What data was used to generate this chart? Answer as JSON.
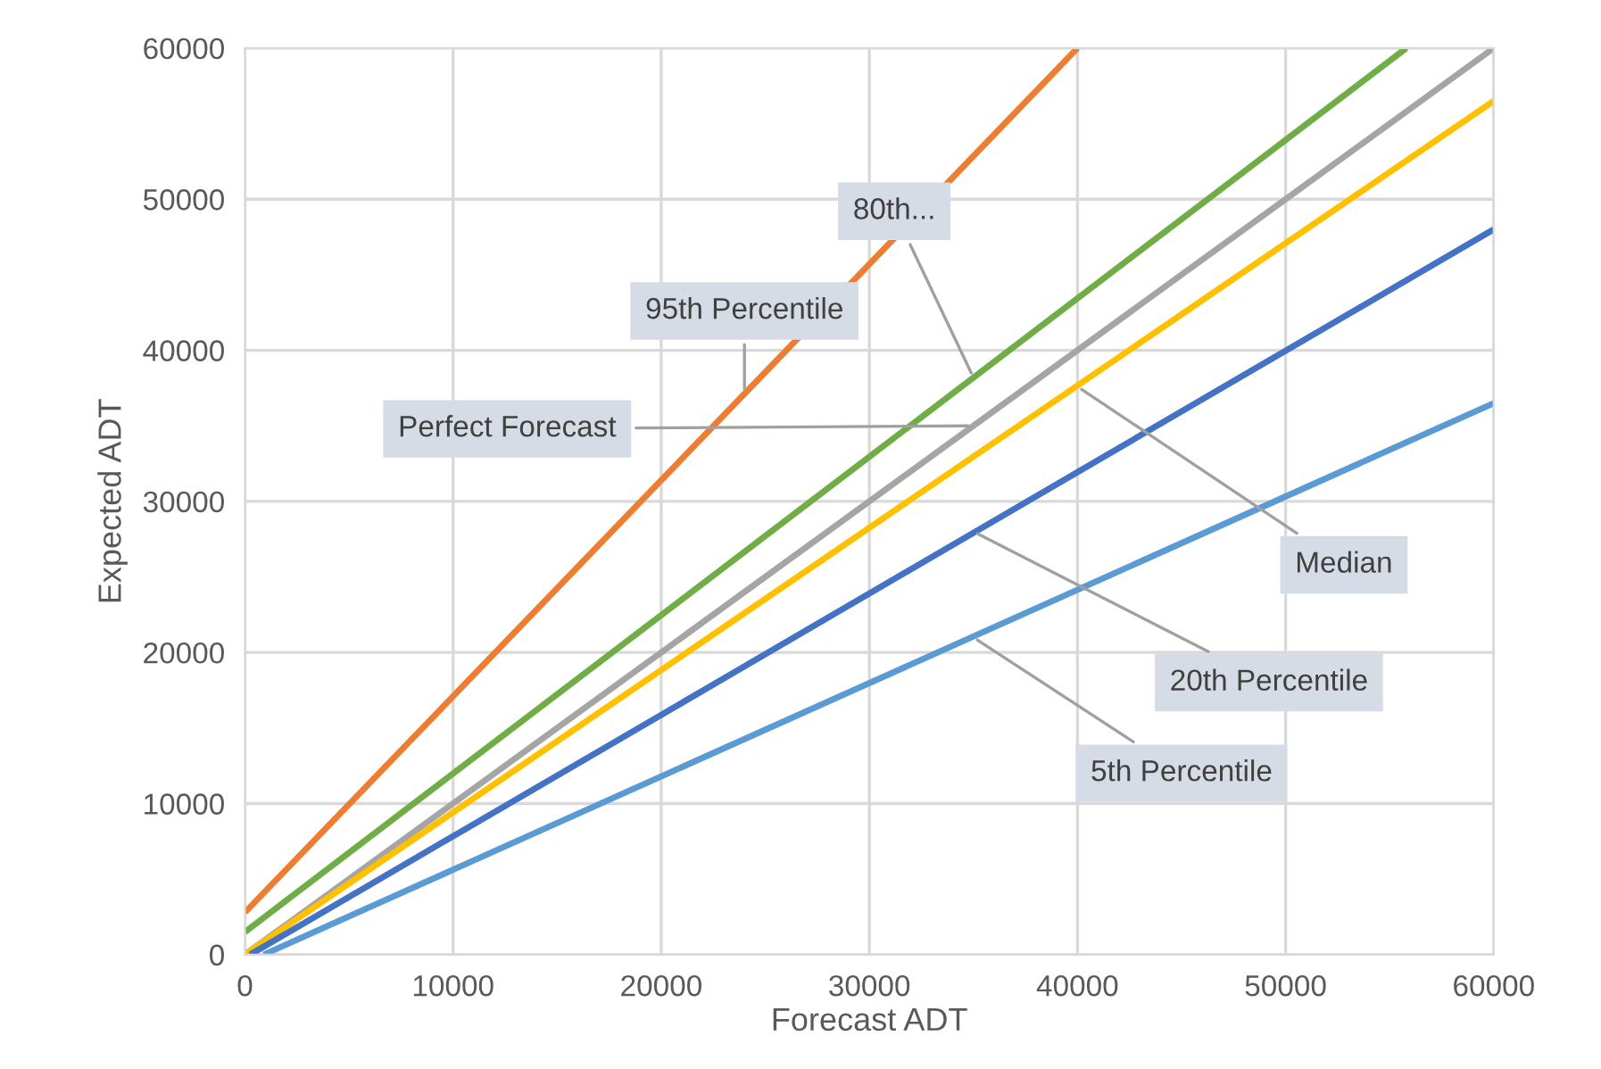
{
  "chart_data": {
    "type": "line",
    "xlabel": "Forecast ADT",
    "ylabel": "Expected ADT",
    "xlim": [
      0,
      60000
    ],
    "ylim": [
      0,
      60000
    ],
    "xticks": [
      0,
      10000,
      20000,
      30000,
      40000,
      50000,
      60000
    ],
    "yticks": [
      0,
      10000,
      20000,
      30000,
      40000,
      50000,
      60000
    ],
    "grid": true,
    "marker": "none",
    "line_style": "solid",
    "series": [
      {
        "color": "#ed7d31",
        "x": [
          0,
          40000
        ],
        "values": [
          2800,
          60000
        ]
      },
      {
        "color": "#70ad47",
        "x": [
          0,
          55800
        ],
        "values": [
          1500,
          60000
        ]
      },
      {
        "color": "#a5a5a5",
        "x": [
          0,
          60000
        ],
        "values": [
          0,
          60000
        ]
      },
      {
        "color": "#ffc000",
        "x": [
          0,
          60000
        ],
        "values": [
          0,
          56500
        ]
      },
      {
        "color": "#4472c4",
        "x": [
          250,
          60000
        ],
        "values": [
          0,
          48000
        ]
      },
      {
        "color": "#5b9bd5",
        "x": [
          900,
          60000
        ],
        "values": [
          0,
          36500
        ]
      }
    ],
    "annotations": [
      {
        "text": "80th...",
        "x": 35000,
        "y": 38200
      },
      {
        "text": "95th Percentile",
        "x": 24000,
        "y": 37100
      },
      {
        "text": "Perfect Forecast",
        "x": 35000,
        "y": 35000
      },
      {
        "text": "Median",
        "x": 40000,
        "y": 37600
      },
      {
        "text": "20th Percentile",
        "x": 35000,
        "y": 28000
      },
      {
        "text": "5th Percentile",
        "x": 35000,
        "y": 21000
      }
    ]
  }
}
